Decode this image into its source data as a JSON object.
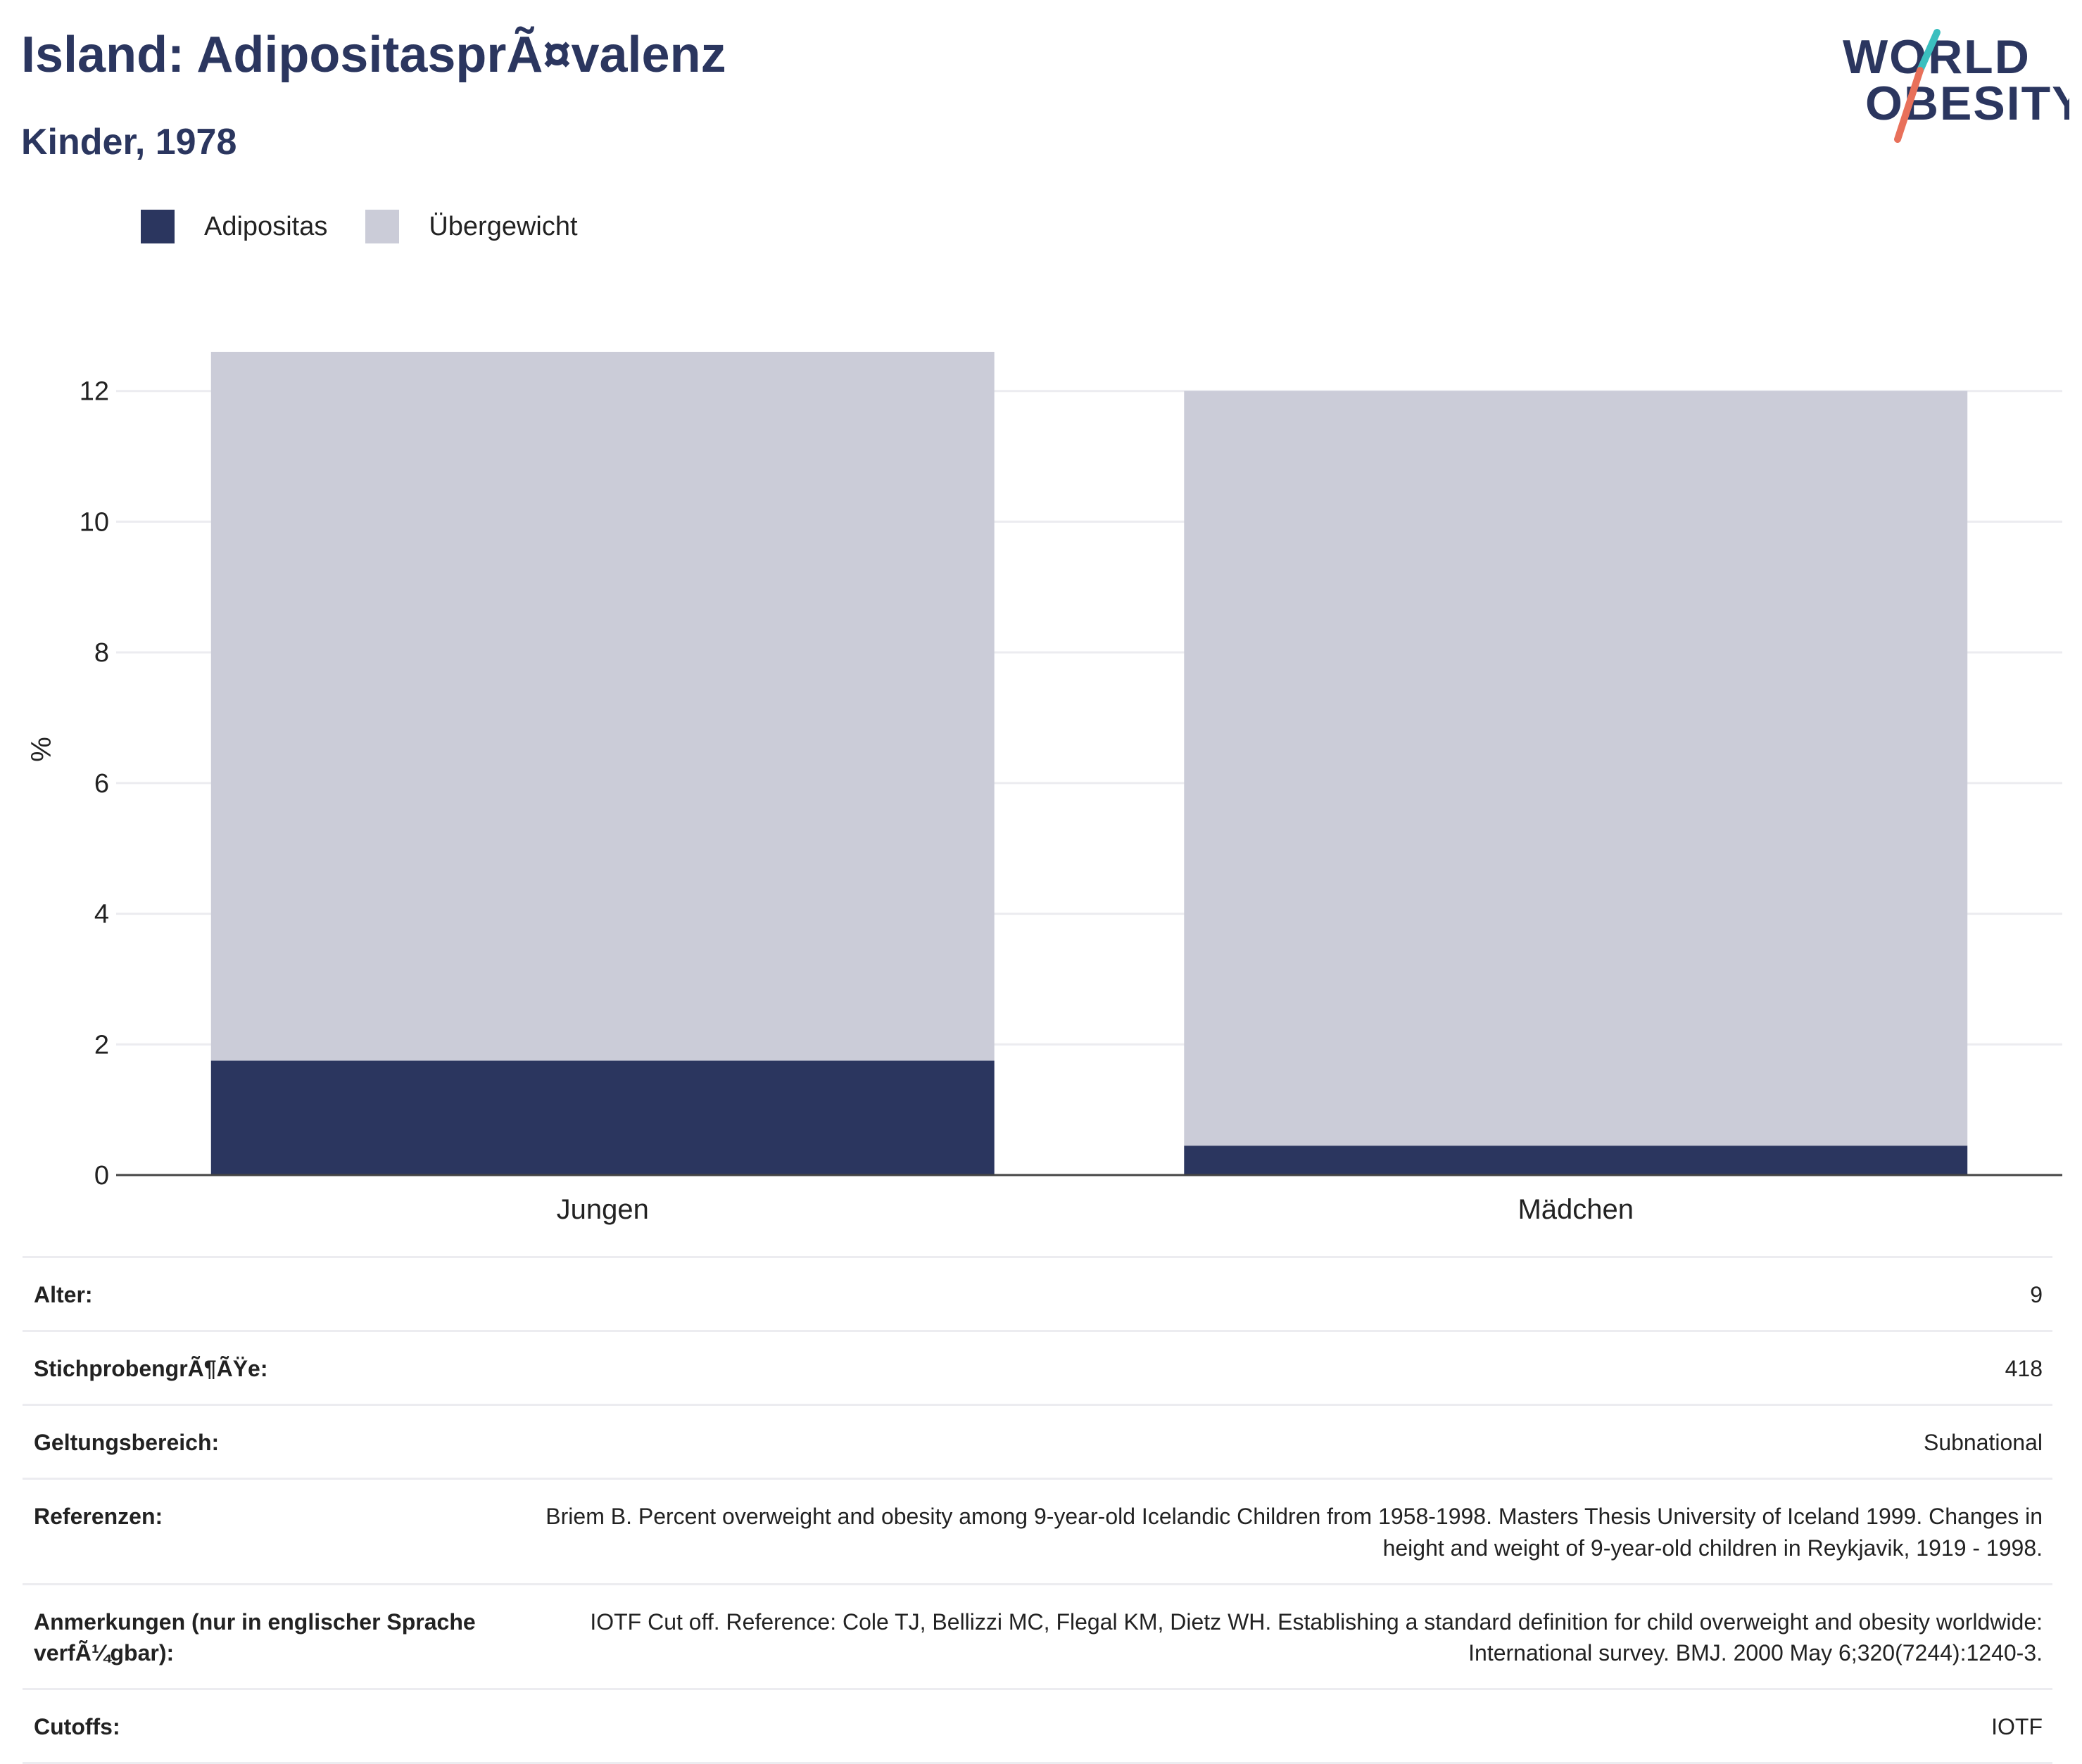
{
  "header": {
    "title": "Island: AdipositasprÃ¤valenz",
    "subtitle": "Kinder, 1978"
  },
  "logo": {
    "line1": "WORLD",
    "line2": "OBESITY",
    "colors": {
      "text": "#2b365f",
      "slash_top": "#3bbfbf",
      "slash_bottom": "#e8705a"
    }
  },
  "legend": [
    {
      "label": "Adipositas",
      "color": "#2b365f"
    },
    {
      "label": "Übergewicht",
      "color": "#cbccd8"
    }
  ],
  "chart_data": {
    "type": "bar",
    "stacked": true,
    "categories": [
      "Jungen",
      "Mädchen"
    ],
    "series": [
      {
        "name": "Adipositas",
        "color": "#2b365f",
        "values": [
          1.75,
          0.45
        ]
      },
      {
        "name": "Übergewicht",
        "color": "#cbccd8",
        "values": [
          10.85,
          11.55
        ]
      }
    ],
    "ylabel": "%",
    "ylim": [
      0,
      12.6
    ],
    "yticks": [
      0,
      2,
      4,
      6,
      8,
      10,
      12
    ],
    "grid": true,
    "legend_position": "top-left"
  },
  "info_rows": [
    {
      "key": "Alter:",
      "value": "9"
    },
    {
      "key": "StichprobengrÃ¶ÃŸe:",
      "value": "418"
    },
    {
      "key": "Geltungsbereich:",
      "value": "Subnational"
    },
    {
      "key": "Referenzen:",
      "value": "Briem B. Percent overweight and obesity among 9-year-old Icelandic Children from 1958-1998. Masters Thesis University of Iceland 1999. Changes in height and weight of 9-year-old children in Reykjavik, 1919 - 1998."
    },
    {
      "key": "Anmerkungen (nur in englischer Sprache verfÃ¼gbar):",
      "value": "IOTF Cut off. Reference: Cole TJ, Bellizzi MC, Flegal KM, Dietz WH. Establishing a standard definition for child overweight and obesity worldwide: International survey. BMJ. 2000 May 6;320(7244):1240-3."
    },
    {
      "key": "Cutoffs:",
      "value": "IOTF"
    }
  ]
}
